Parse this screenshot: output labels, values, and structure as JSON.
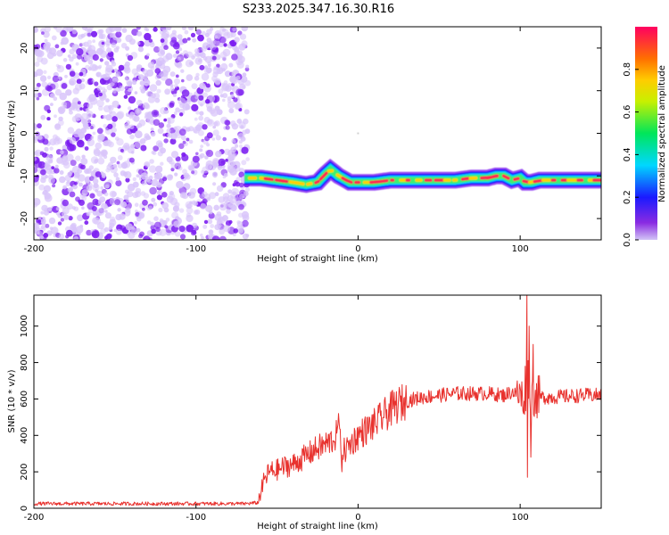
{
  "title": "S233.2025.347.16.30.R16",
  "colors": {
    "snr_line": "#e8322e",
    "noise_purple": "#7b1cf0",
    "noise_light": "#d8c4fa",
    "band_core": "#ff2a4f",
    "band_mid": "#3df070",
    "band_edge": "#1414ff",
    "axes": "#000000"
  },
  "chart_data": [
    {
      "type": "heatmap",
      "name": "spectrogram",
      "xlabel": "Height of straight line (km)",
      "ylabel": "Frequency (Hz)",
      "xlim": [
        -200,
        150
      ],
      "ylim": [
        -25,
        25
      ],
      "xticks": [
        -200,
        -100,
        0,
        100
      ],
      "yticks": [
        -20,
        -10,
        0,
        10,
        20
      ],
      "noise_region_x": [
        -200,
        -68
      ],
      "band_start_x": -70,
      "band_center": {
        "x": [
          -70,
          -60,
          -50,
          -40,
          -32,
          -25,
          -20,
          -17,
          -12,
          -5,
          0,
          10,
          20,
          30,
          40,
          50,
          60,
          70,
          80,
          85,
          90,
          95,
          100,
          103,
          107,
          112,
          120,
          130,
          140,
          150
        ],
        "y": [
          -10.5,
          -10.5,
          -11,
          -11.5,
          -12,
          -11.5,
          -9.5,
          -8.5,
          -10,
          -11.5,
          -11.5,
          -11.5,
          -11,
          -11,
          -11,
          -11,
          -11,
          -10.5,
          -10.5,
          -10,
          -10,
          -11,
          -10.5,
          -11.5,
          -11.5,
          -11,
          -11,
          -11,
          -11,
          -11
        ]
      },
      "band_halfwidth_hz": 1.5,
      "colorbar": {
        "label": "Normalized spectral amplitude",
        "range": [
          0,
          1
        ],
        "ticks": [
          0.0,
          0.2,
          0.4,
          0.6,
          0.8
        ],
        "tick_labels": [
          "0.0",
          "0.2",
          "0.4",
          "0.6",
          "0.8"
        ],
        "stops": [
          {
            "v": 0.0,
            "c": "#d2c4f6"
          },
          {
            "v": 0.08,
            "c": "#8a2be2"
          },
          {
            "v": 0.2,
            "c": "#1a1aff"
          },
          {
            "v": 0.35,
            "c": "#00d7ff"
          },
          {
            "v": 0.5,
            "c": "#00e65a"
          },
          {
            "v": 0.65,
            "c": "#c8f000"
          },
          {
            "v": 0.75,
            "c": "#ffcc00"
          },
          {
            "v": 0.85,
            "c": "#ff7000"
          },
          {
            "v": 1.0,
            "c": "#ff0060"
          }
        ]
      }
    },
    {
      "type": "line",
      "name": "snr",
      "xlabel": "Height of straight line (km)",
      "ylabel": "SNR (10 * v/v)",
      "xlim": [
        -200,
        150
      ],
      "ylim": [
        0,
        1170
      ],
      "xticks": [
        -200,
        -100,
        0,
        100
      ],
      "yticks": [
        0,
        200,
        400,
        600,
        800,
        1000
      ],
      "series": [
        {
          "x": [
            -200,
            -180,
            -160,
            -140,
            -120,
            -100,
            -80,
            -70,
            -62,
            -58,
            -55,
            -50,
            -45,
            -40,
            -35,
            -30,
            -25,
            -20,
            -15,
            -12,
            -10,
            -8,
            -5,
            0,
            5,
            10,
            15,
            20,
            25,
            30,
            35,
            40,
            50,
            60,
            70,
            80,
            90,
            95,
            100,
            102,
            104,
            105,
            106,
            108,
            110,
            120,
            130,
            140,
            150
          ],
          "y": [
            25,
            25,
            25,
            25,
            25,
            25,
            25,
            25,
            30,
            150,
            200,
            210,
            230,
            240,
            270,
            300,
            330,
            350,
            380,
            420,
            300,
            320,
            350,
            400,
            430,
            460,
            500,
            540,
            570,
            590,
            600,
            610,
            620,
            630,
            630,
            630,
            620,
            640,
            620,
            600,
            660,
            750,
            600,
            620,
            610,
            610,
            615,
            620,
            620
          ]
        }
      ],
      "spikes": [
        {
          "x": -12,
          "y": 520
        },
        {
          "x": -10,
          "y": 200
        },
        {
          "x": 103,
          "y": 780
        },
        {
          "x": 104,
          "y": 1170
        },
        {
          "x": 104.5,
          "y": 170
        },
        {
          "x": 105.5,
          "y": 1000
        },
        {
          "x": 106.5,
          "y": 280
        },
        {
          "x": 108,
          "y": 900
        }
      ]
    }
  ]
}
